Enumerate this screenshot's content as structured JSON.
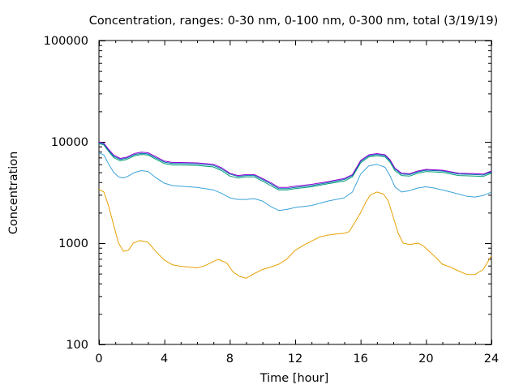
{
  "chart_data": {
    "type": "line",
    "title": "Concentration, ranges: 0-30 nm, 0-100 nm, 0-300 nm, total (3/19/19)",
    "xlabel": "Time [hour]",
    "ylabel": "Concentration",
    "xlim": [
      0,
      24
    ],
    "ylim": [
      100,
      100000
    ],
    "yscale": "log",
    "xticks": [
      0,
      4,
      8,
      12,
      16,
      20,
      24
    ],
    "yticks": [
      100,
      1000,
      10000,
      100000
    ],
    "grid": false,
    "legend": false,
    "series": [
      {
        "color": "#e6a000",
        "x": [
          0,
          0.3,
          0.6,
          0.9,
          1.2,
          1.5,
          1.8,
          2.1,
          2.5,
          3.0,
          3.5,
          4.0,
          4.5,
          5.0,
          6.0,
          6.5,
          7.0,
          7.3,
          7.8,
          8.2,
          8.6,
          9.0,
          9.5,
          10.0,
          10.5,
          11.0,
          11.5,
          12.0,
          12.5,
          13.0,
          13.5,
          14.0,
          14.5,
          15.0,
          15.3,
          15.7,
          16.0,
          16.3,
          16.6,
          17.0,
          17.4,
          17.7,
          18.0,
          18.3,
          18.6,
          19.0,
          19.5,
          19.8,
          20.2,
          20.6,
          21.0,
          21.5,
          22.0,
          22.5,
          23.0,
          23.5,
          24.0
        ],
        "y": [
          3400,
          3200,
          2300,
          1500,
          1000,
          830,
          850,
          1000,
          1060,
          1020,
          820,
          680,
          610,
          590,
          570,
          600,
          660,
          690,
          640,
          520,
          470,
          450,
          500,
          550,
          580,
          620,
          700,
          850,
          950,
          1050,
          1150,
          1200,
          1230,
          1250,
          1300,
          1650,
          2000,
          2500,
          3000,
          3200,
          3050,
          2600,
          1800,
          1250,
          1000,
          970,
          1000,
          950,
          830,
          720,
          620,
          580,
          530,
          490,
          490,
          550,
          750
        ]
      },
      {
        "color": "#3aa3d8",
        "x": [
          0,
          0.3,
          0.6,
          0.9,
          1.2,
          1.5,
          1.8,
          2.2,
          2.6,
          3.0,
          3.5,
          4.0,
          4.5,
          5.0,
          6.0,
          7.0,
          7.5,
          8.0,
          8.5,
          9.0,
          9.5,
          10.0,
          10.5,
          11.0,
          11.5,
          12.0,
          13.0,
          14.0,
          15.0,
          15.5,
          16.0,
          16.5,
          17.0,
          17.5,
          17.8,
          18.1,
          18.5,
          19.0,
          19.5,
          20.0,
          20.5,
          21.0,
          21.5,
          22.0,
          22.5,
          23.0,
          23.5,
          24.0
        ],
        "y": [
          7800,
          7400,
          6000,
          5000,
          4500,
          4400,
          4600,
          5000,
          5200,
          5100,
          4400,
          3900,
          3700,
          3650,
          3550,
          3350,
          3100,
          2800,
          2700,
          2700,
          2750,
          2600,
          2300,
          2100,
          2150,
          2250,
          2350,
          2600,
          2800,
          3200,
          4800,
          5800,
          6000,
          5600,
          4600,
          3600,
          3200,
          3300,
          3500,
          3600,
          3500,
          3350,
          3200,
          3050,
          2900,
          2850,
          2950,
          3200
        ]
      },
      {
        "color": "#009e73",
        "x": [
          0,
          0.3,
          0.6,
          0.9,
          1.3,
          1.7,
          2.2,
          2.6,
          3.0,
          3.5,
          4.0,
          4.5,
          5.0,
          6.0,
          7.0,
          7.5,
          8.0,
          8.5,
          9.0,
          9.5,
          10.0,
          10.5,
          11.0,
          11.5,
          12.0,
          13.0,
          14.0,
          15.0,
          15.5,
          16.0,
          16.5,
          17.0,
          17.5,
          17.8,
          18.1,
          18.5,
          19.0,
          19.5,
          20.0,
          20.5,
          21.0,
          22.0,
          23.0,
          23.5,
          24.0
        ],
        "y": [
          9600,
          9300,
          8000,
          7000,
          6500,
          6700,
          7300,
          7500,
          7400,
          6700,
          6100,
          5900,
          5900,
          5850,
          5650,
          5200,
          4600,
          4400,
          4500,
          4500,
          4100,
          3700,
          3350,
          3350,
          3450,
          3600,
          3850,
          4100,
          4500,
          6200,
          7100,
          7300,
          7100,
          6300,
          5200,
          4650,
          4600,
          4900,
          5100,
          5050,
          5000,
          4650,
          4600,
          4550,
          4900
        ]
      },
      {
        "color": "#0072b2",
        "x": [
          0,
          0.3,
          0.6,
          0.9,
          1.3,
          1.7,
          2.2,
          2.6,
          3.0,
          3.5,
          4.0,
          4.5,
          5.0,
          6.0,
          7.0,
          7.5,
          8.0,
          8.5,
          9.0,
          9.5,
          10.0,
          10.5,
          11.0,
          11.5,
          12.0,
          13.0,
          14.0,
          15.0,
          15.5,
          16.0,
          16.5,
          17.0,
          17.5,
          17.8,
          18.1,
          18.5,
          19.0,
          19.5,
          20.0,
          20.5,
          21.0,
          22.0,
          23.0,
          23.5,
          24.0
        ],
        "y": [
          9800,
          9500,
          8200,
          7200,
          6700,
          6900,
          7500,
          7700,
          7600,
          6900,
          6300,
          6100,
          6100,
          6050,
          5850,
          5400,
          4800,
          4550,
          4650,
          4650,
          4250,
          3850,
          3450,
          3450,
          3550,
          3700,
          3950,
          4250,
          4650,
          6400,
          7300,
          7500,
          7300,
          6500,
          5400,
          4800,
          4750,
          5050,
          5250,
          5200,
          5150,
          4800,
          4750,
          4700,
          5050
        ]
      },
      {
        "color": "#9400d3",
        "x": [
          0,
          0.3,
          0.6,
          0.9,
          1.3,
          1.7,
          2.2,
          2.6,
          3.0,
          3.5,
          4.0,
          4.5,
          5.0,
          6.0,
          7.0,
          7.5,
          8.0,
          8.5,
          9.0,
          9.5,
          10.0,
          10.5,
          11.0,
          11.5,
          12.0,
          13.0,
          14.0,
          15.0,
          15.5,
          16.0,
          16.5,
          17.0,
          17.5,
          17.8,
          18.1,
          18.5,
          19.0,
          19.5,
          20.0,
          20.5,
          21.0,
          22.0,
          23.0,
          23.5,
          24.0
        ],
        "y": [
          10000,
          9700,
          8400,
          7400,
          6850,
          7050,
          7700,
          7900,
          7800,
          7100,
          6450,
          6250,
          6250,
          6200,
          6000,
          5550,
          4900,
          4650,
          4750,
          4750,
          4350,
          3950,
          3550,
          3550,
          3650,
          3800,
          4050,
          4350,
          4750,
          6550,
          7450,
          7650,
          7450,
          6650,
          5500,
          4900,
          4850,
          5150,
          5350,
          5300,
          5250,
          4900,
          4850,
          4800,
          5150
        ]
      }
    ]
  }
}
